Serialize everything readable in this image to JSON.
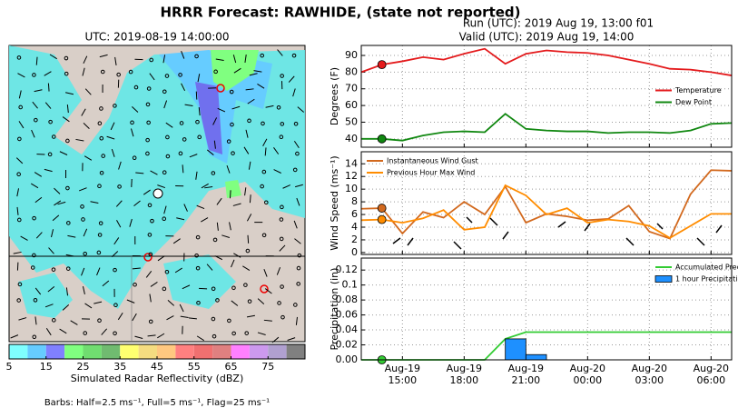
{
  "title": "HRRR Forecast: RAWHIDE, (state not reported)",
  "run": "Run (UTC): 2019 Aug 19, 13:00 f01",
  "valid": "Valid (UTC): 2019 Aug 19, 14:00",
  "map": {
    "title": "UTC: 2019-08-19 14:00:00",
    "footer": "Barbs: Half=2.5 ms⁻¹, Full=5 ms⁻¹, Flag=25 ms⁻¹"
  },
  "colorbar": {
    "label": "Simulated Radar Reflectivity (dBZ)",
    "lim": [
      5,
      85
    ],
    "ticks": [
      5,
      15,
      25,
      35,
      45,
      55,
      65,
      75
    ],
    "colors": [
      "#7fffff",
      "#66ccff",
      "#8080ff",
      "#80ff80",
      "#70dd70",
      "#70bb70",
      "#ffff70",
      "#f5dc80",
      "#ffc880",
      "#ff8080",
      "#f07070",
      "#e08080",
      "#ff80ff",
      "#cc99ee",
      "#b0a0d0",
      "#808080"
    ]
  },
  "chart_data": [
    {
      "type": "line",
      "ylabel": "Degrees (F)",
      "x": [
        "2019-08-19 13:00",
        "2019-08-19 14:00",
        "2019-08-19 15:00",
        "2019-08-19 16:00",
        "2019-08-19 17:00",
        "2019-08-19 18:00",
        "2019-08-19 19:00",
        "2019-08-19 20:00",
        "2019-08-19 21:00",
        "2019-08-19 22:00",
        "2019-08-19 23:00",
        "2019-08-20 00:00",
        "2019-08-20 01:00",
        "2019-08-20 02:00",
        "2019-08-20 03:00",
        "2019-08-20 04:00",
        "2019-08-20 05:00",
        "2019-08-20 06:00",
        "2019-08-20 07:00"
      ],
      "xlim": [
        "2019-08-19 13:00",
        "2019-08-20 07:00"
      ],
      "xticks": [
        "2019-08-19 15:00",
        "2019-08-19 18:00",
        "2019-08-19 21:00",
        "2019-08-20 00:00",
        "2019-08-20 03:00",
        "2019-08-20 06:00"
      ],
      "ylim": [
        35,
        96
      ],
      "yticks": [
        40,
        50,
        60,
        70,
        80,
        90
      ],
      "grid": true,
      "legend": "center right",
      "highlight_x": "2019-08-19 14:00",
      "series": [
        {
          "name": "Temperature",
          "color": "#e41a1c",
          "values": [
            80,
            84.5,
            86.5,
            89,
            87.5,
            91,
            94,
            85,
            91,
            93,
            92,
            91.5,
            90,
            87.5,
            85,
            82,
            81.5,
            80,
            78
          ]
        },
        {
          "name": "Dew Point",
          "color": "#118811",
          "values": [
            40,
            40,
            39,
            42,
            44,
            44.5,
            44,
            55,
            46,
            45,
            44.5,
            44.5,
            43.5,
            44,
            44,
            43.5,
            45,
            49,
            49.5
          ]
        }
      ]
    },
    {
      "type": "line",
      "ylabel": "Wind Speed (ms⁻¹)",
      "x": [
        "2019-08-19 13:00",
        "2019-08-19 14:00",
        "2019-08-19 15:00",
        "2019-08-19 16:00",
        "2019-08-19 17:00",
        "2019-08-19 18:00",
        "2019-08-19 19:00",
        "2019-08-19 20:00",
        "2019-08-19 21:00",
        "2019-08-19 22:00",
        "2019-08-19 23:00",
        "2019-08-20 00:00",
        "2019-08-20 01:00",
        "2019-08-20 02:00",
        "2019-08-20 03:00",
        "2019-08-20 04:00",
        "2019-08-20 05:00",
        "2019-08-20 06:00",
        "2019-08-20 07:00"
      ],
      "xlim": [
        "2019-08-19 13:00",
        "2019-08-20 07:00"
      ],
      "xticks": [
        "2019-08-19 15:00",
        "2019-08-19 18:00",
        "2019-08-19 21:00",
        "2019-08-20 00:00",
        "2019-08-20 03:00",
        "2019-08-20 06:00"
      ],
      "ylim": [
        -0.3,
        15.9
      ],
      "yticks": [
        0,
        2,
        4,
        6,
        8,
        10,
        12,
        14
      ],
      "grid": true,
      "legend": "upper left",
      "highlight_x": "2019-08-19 14:00",
      "series": [
        {
          "name": "Instantaneous Wind Gust",
          "color": "#d2691e",
          "values": [
            6.9,
            7,
            3,
            6.4,
            5.5,
            8,
            6,
            10.4,
            4.7,
            6.1,
            5.7,
            5.1,
            5.3,
            7.4,
            3.3,
            2.2,
            9.2,
            13,
            12.9
          ]
        },
        {
          "name": "Previous Hour Max Wind",
          "color": "#ff8c00",
          "values": [
            5.1,
            5.2,
            4.7,
            5.4,
            6.7,
            3.6,
            4,
            10.6,
            9,
            6,
            7,
            4.7,
            5.2,
            4.9,
            4.2,
            2.3,
            4.2,
            6.1,
            6.1
          ]
        }
      ]
    },
    {
      "type": "line",
      "ylabel": "Precipitation (in)",
      "x": [
        "2019-08-19 13:00",
        "2019-08-19 14:00",
        "2019-08-19 15:00",
        "2019-08-19 16:00",
        "2019-08-19 17:00",
        "2019-08-19 18:00",
        "2019-08-19 19:00",
        "2019-08-19 20:00",
        "2019-08-19 21:00",
        "2019-08-19 22:00",
        "2019-08-19 23:00",
        "2019-08-20 00:00",
        "2019-08-20 01:00",
        "2019-08-20 02:00",
        "2019-08-20 03:00",
        "2019-08-20 04:00",
        "2019-08-20 05:00",
        "2019-08-20 06:00",
        "2019-08-20 07:00"
      ],
      "xlim": [
        "2019-08-19 13:00",
        "2019-08-20 07:00"
      ],
      "xticks": [
        {
          "value": "2019-08-19 15:00",
          "label": "Aug-19\n15:00"
        },
        {
          "value": "2019-08-19 18:00",
          "label": "Aug-19\n18:00"
        },
        {
          "value": "2019-08-19 21:00",
          "label": "Aug-19\n21:00"
        },
        {
          "value": "2019-08-20 00:00",
          "label": "Aug-20\n00:00"
        },
        {
          "value": "2019-08-20 03:00",
          "label": "Aug-20\n03:00"
        },
        {
          "value": "2019-08-20 06:00",
          "label": "Aug-20\n06:00"
        }
      ],
      "ylim": [
        0,
        0.136
      ],
      "yticks": [
        {
          "value": 0,
          "label": "0.00"
        },
        0.02,
        0.04,
        0.06,
        0.08,
        0.1,
        0.12
      ],
      "grid": true,
      "legend": "upper right",
      "highlight_x": "2019-08-19 14:00",
      "series": [
        {
          "name": "Accumulated Precipitation",
          "type": "line",
          "color": "#33cc33",
          "values": [
            0,
            0,
            0,
            0,
            0,
            0,
            0,
            0.028,
            0.037,
            0.037,
            0.037,
            0.037,
            0.037,
            0.037,
            0.037,
            0.037,
            0.037,
            0.037,
            0.037
          ]
        },
        {
          "name": "1 hour Precipitation",
          "type": "bar",
          "color": "#1e90ff",
          "values": [
            0,
            0,
            0,
            0,
            0,
            0,
            0,
            0.028,
            0.007,
            0,
            0,
            0,
            0,
            0,
            0,
            0,
            0,
            0,
            0
          ]
        }
      ]
    }
  ]
}
